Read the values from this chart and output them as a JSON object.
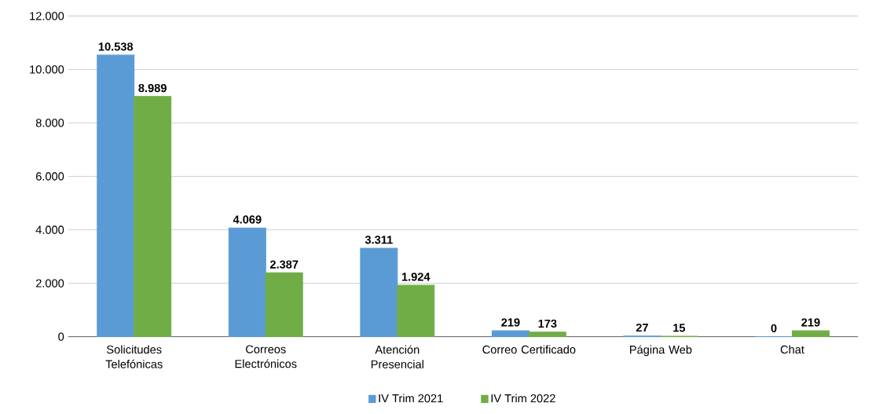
{
  "chart_data": {
    "type": "bar",
    "categories": [
      "Solicitudes Telefónicas",
      "Correos Electrónicos",
      "Atención Presencial",
      "Correo Certificado",
      "Página Web",
      "Chat"
    ],
    "series": [
      {
        "name": "IV Trim 2021",
        "color": "#5b9bd5",
        "values": [
          10538,
          4069,
          3311,
          219,
          27,
          0
        ],
        "value_labels": [
          "10.538",
          "4.069",
          "3.311",
          "219",
          "27",
          "0"
        ]
      },
      {
        "name": "IV Trim 2022",
        "color": "#70ad47",
        "values": [
          8989,
          2387,
          1924,
          173,
          15,
          219
        ],
        "value_labels": [
          "8.989",
          "2.387",
          "1.924",
          "173",
          "15",
          "219"
        ]
      }
    ],
    "ylim": [
      0,
      12000
    ],
    "yticks": [
      {
        "value": 0,
        "label": "0"
      },
      {
        "value": 2000,
        "label": "2.000"
      },
      {
        "value": 4000,
        "label": "4.000"
      },
      {
        "value": 6000,
        "label": "6.000"
      },
      {
        "value": 8000,
        "label": "8.000"
      },
      {
        "value": 10000,
        "label": "10.000"
      },
      {
        "value": 12000,
        "label": "12.000"
      }
    ],
    "grid": "y",
    "legend": "bottom"
  }
}
